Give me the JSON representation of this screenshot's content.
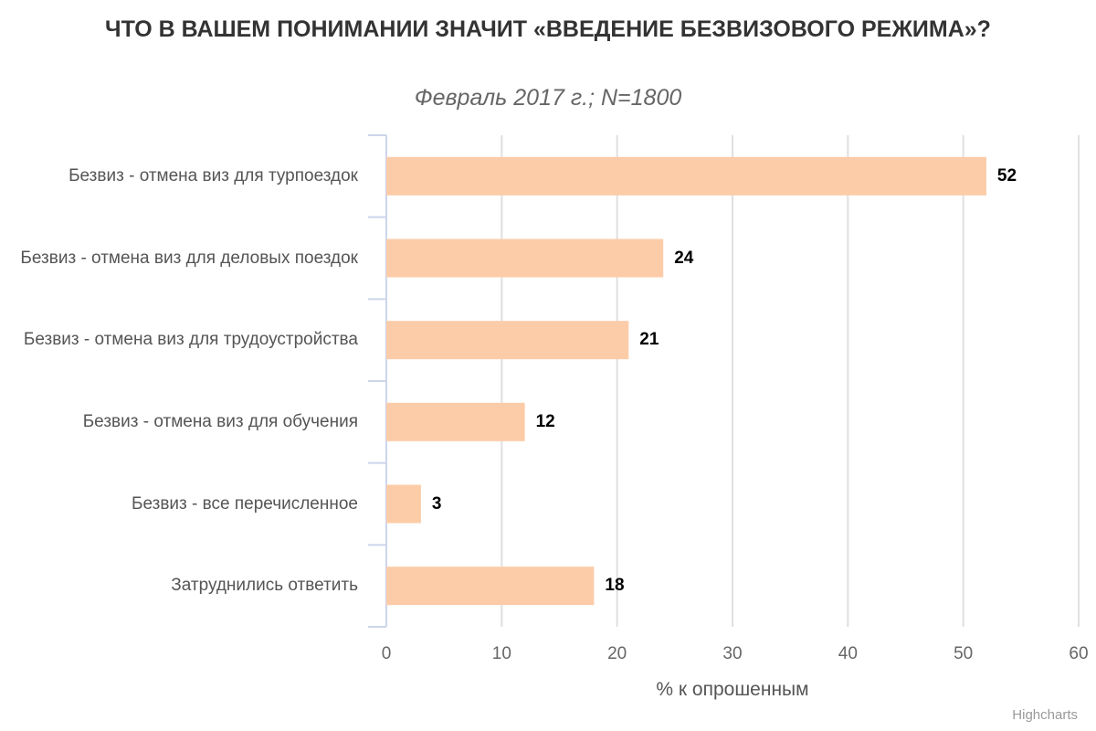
{
  "chart_data": {
    "type": "bar",
    "orientation": "horizontal",
    "title": "ЧТО В ВАШЕМ ПОНИМАНИИ ЗНАЧИТ «ВВЕДЕНИЕ БЕЗВИЗОВОГО РЕЖИМА»?",
    "subtitle": "Февраль 2017 г.; N=1800",
    "categories": [
      "Безвиз - отмена виз для турпоездок",
      "Безвиз - отмена виз для деловых поездок",
      "Безвиз - отмена виз для трудоустройства",
      "Безвиз - отмена виз для обучения",
      "Безвиз - все перечисленное",
      "Затруднились ответить"
    ],
    "values": [
      52,
      24,
      21,
      12,
      3,
      18
    ],
    "xlabel": "% к опрошенным",
    "ylabel": "",
    "xlim": [
      0,
      60
    ],
    "ticks": [
      "0",
      "10",
      "20",
      "30",
      "40",
      "50",
      "60"
    ],
    "grid": true,
    "bar_color": "#fccca8",
    "credits": "Highcharts"
  }
}
